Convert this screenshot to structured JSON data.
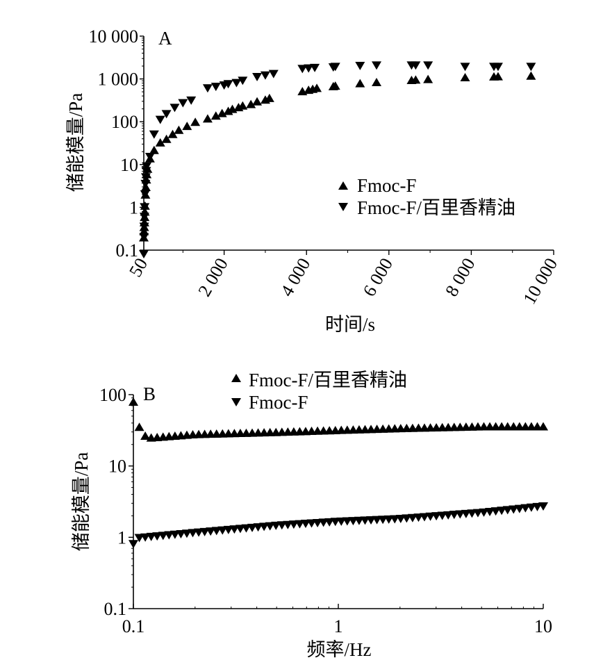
{
  "chart_data": [
    {
      "panel": "A",
      "type": "scatter",
      "xlabel": "时间/s",
      "ylabel": "储能模量/Pa",
      "xlim": [
        50,
        10000
      ],
      "ylim": [
        0.1,
        10000
      ],
      "yscale": "log",
      "xticks": [
        50,
        2000,
        4000,
        6000,
        8000,
        10000
      ],
      "xtick_labels": [
        "50",
        "2 000",
        "4 000",
        "6 000",
        "8 000",
        "10 000"
      ],
      "yticks": [
        0.1,
        1,
        10,
        100,
        1000,
        10000
      ],
      "ytick_labels": [
        "0.1",
        "1",
        "10",
        "100",
        "1 000",
        "10 000"
      ],
      "legend_position": "right-middle",
      "series": [
        {
          "name": "Fmoc-F",
          "marker": "triangle-up",
          "x": [
            50,
            55,
            60,
            65,
            70,
            75,
            80,
            90,
            100,
            110,
            120,
            140,
            200,
            300,
            450,
            600,
            750,
            900,
            1100,
            1300,
            1600,
            1800,
            1950,
            2100,
            2200,
            2350,
            2450,
            2650,
            2800,
            3000,
            3100,
            3900,
            4050,
            4150,
            4250,
            4650,
            4700,
            5300,
            5700,
            6550,
            6650,
            6950,
            7850,
            8550,
            8650,
            9450
          ],
          "values": [
            0.2,
            0.28,
            0.35,
            0.45,
            0.6,
            0.8,
            1.1,
            2,
            3,
            4.5,
            6,
            8,
            14,
            22,
            33,
            40,
            52,
            65,
            80,
            100,
            120,
            140,
            160,
            180,
            200,
            220,
            240,
            260,
            300,
            330,
            360,
            520,
            560,
            590,
            620,
            680,
            700,
            800,
            850,
            950,
            970,
            1000,
            1100,
            1150,
            1160,
            1200
          ]
        },
        {
          "name": "Fmoc-F/百里香精油",
          "marker": "triangle-down",
          "x": [
            50,
            55,
            60,
            65,
            70,
            80,
            90,
            100,
            110,
            120,
            200,
            300,
            450,
            600,
            800,
            1000,
            1200,
            1600,
            1800,
            2000,
            2100,
            2300,
            2450,
            2800,
            3000,
            3200,
            3900,
            4050,
            4200,
            4650,
            4700,
            5300,
            5700,
            6550,
            6650,
            6950,
            7850,
            8550,
            8650,
            9450
          ],
          "values": [
            0.08,
            0.2,
            0.35,
            0.6,
            1,
            2,
            3.5,
            5,
            7,
            9,
            15,
            50,
            110,
            150,
            210,
            270,
            310,
            600,
            650,
            700,
            750,
            800,
            900,
            1100,
            1200,
            1300,
            1700,
            1750,
            1800,
            1850,
            1900,
            2000,
            2050,
            2050,
            2050,
            2050,
            1900,
            1900,
            1900,
            1900
          ]
        }
      ]
    },
    {
      "panel": "B",
      "type": "scatter",
      "xlabel": "频率/Hz",
      "ylabel": "储能模量/Pa",
      "xscale": "log",
      "yscale": "log",
      "xlim": [
        0.1,
        10
      ],
      "ylim": [
        0.1,
        100
      ],
      "xticks": [
        0.1,
        1,
        10
      ],
      "xtick_labels": [
        "0.1",
        "1",
        "10"
      ],
      "yticks": [
        0.1,
        1,
        10,
        100
      ],
      "ytick_labels": [
        "0.1",
        "1",
        "10",
        "100"
      ],
      "legend_position": "top-center",
      "series": [
        {
          "name": "Fmoc-F/百里香精油",
          "marker": "triangle-up",
          "x_range": [
            0.1,
            10
          ],
          "n_points": 70,
          "anchors": [
            [
              0.1,
              80
            ],
            [
              0.107,
              35
            ],
            [
              0.113,
              27
            ],
            [
              0.12,
              25
            ],
            [
              0.2,
              28
            ],
            [
              0.5,
              30
            ],
            [
              1,
              32
            ],
            [
              2,
              34
            ],
            [
              5,
              36
            ],
            [
              10,
              36
            ]
          ]
        },
        {
          "name": "Fmoc-F",
          "marker": "triangle-down",
          "x_range": [
            0.1,
            10
          ],
          "n_points": 70,
          "anchors": [
            [
              0.1,
              0.8
            ],
            [
              0.105,
              0.97
            ],
            [
              0.2,
              1.15
            ],
            [
              0.5,
              1.45
            ],
            [
              1,
              1.65
            ],
            [
              2,
              1.8
            ],
            [
              5,
              2.2
            ],
            [
              10,
              2.7
            ]
          ]
        }
      ]
    }
  ],
  "panels": {
    "A": {
      "label": "A",
      "xlabel": "时间/s",
      "ylabel": "储能模量/Pa"
    },
    "B": {
      "label": "B",
      "xlabel": "频率/Hz",
      "ylabel": "储能模量/Pa"
    }
  },
  "legend": {
    "A": [
      {
        "marker": "triangle-up",
        "text": "Fmoc-F"
      },
      {
        "marker": "triangle-down",
        "text": "Fmoc-F/百里香精油"
      }
    ],
    "B": [
      {
        "marker": "triangle-up",
        "text": "Fmoc-F/百里香精油"
      },
      {
        "marker": "triangle-down",
        "text": "Fmoc-F"
      }
    ]
  },
  "colors": {
    "marker": "#000000",
    "axis": "#000000",
    "background": "#ffffff"
  }
}
